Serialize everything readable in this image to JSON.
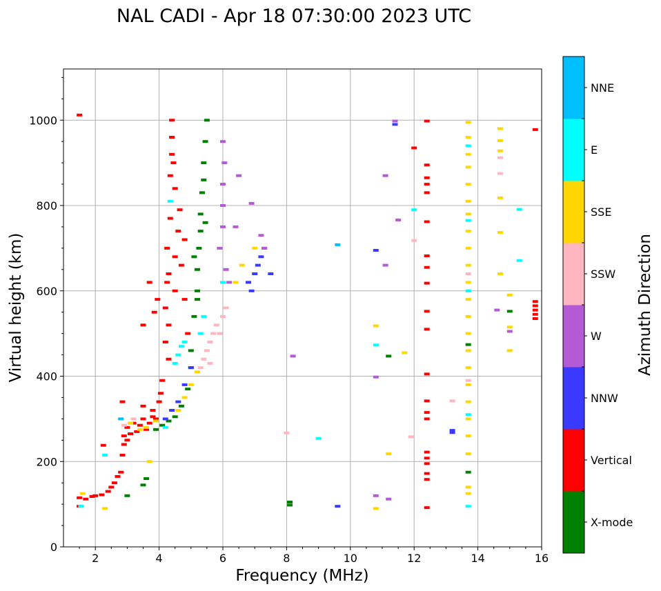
{
  "chart_data": {
    "type": "scatter",
    "title": "NAL CADI - Apr 18 07:30:00 2023 UTC",
    "xlabel": "Frequency (MHz)",
    "ylabel": "Virtual height (km)",
    "xlim": [
      1,
      16
    ],
    "ylim": [
      0,
      1120
    ],
    "xticks": [
      2,
      4,
      6,
      8,
      10,
      12,
      14,
      16
    ],
    "yticks": [
      0,
      200,
      400,
      600,
      800,
      1000
    ],
    "grid": true,
    "colorbar": {
      "label": "Azimuth Direction",
      "entries": [
        {
          "name": "X-mode",
          "color": "#008000"
        },
        {
          "name": "Vertical",
          "color": "#ff0000"
        },
        {
          "name": "NNW",
          "color": "#3a3aff"
        },
        {
          "name": "W",
          "color": "#b35ad6"
        },
        {
          "name": "SSW",
          "color": "#ffb6c1"
        },
        {
          "name": "SSE",
          "color": "#ffd700"
        },
        {
          "name": "E",
          "color": "#00ffff"
        },
        {
          "name": "NNE",
          "color": "#00bfff"
        }
      ]
    },
    "series": [
      {
        "name": "Vertical",
        "color": "#ff0000",
        "points": [
          [
            1.5,
            1012
          ],
          [
            1.5,
            115
          ],
          [
            1.5,
            95
          ],
          [
            1.7,
            112
          ],
          [
            1.9,
            118
          ],
          [
            2.0,
            120
          ],
          [
            2.2,
            122
          ],
          [
            2.4,
            130
          ],
          [
            2.5,
            140
          ],
          [
            2.6,
            150
          ],
          [
            2.7,
            165
          ],
          [
            2.8,
            175
          ],
          [
            2.85,
            215
          ],
          [
            2.85,
            340
          ],
          [
            2.9,
            240
          ],
          [
            2.9,
            260
          ],
          [
            3.0,
            280
          ],
          [
            3.0,
            250
          ],
          [
            3.1,
            265
          ],
          [
            3.2,
            290
          ],
          [
            3.3,
            270
          ],
          [
            3.4,
            285
          ],
          [
            3.5,
            330
          ],
          [
            3.5,
            300
          ],
          [
            3.6,
            275
          ],
          [
            3.7,
            290
          ],
          [
            3.8,
            305
          ],
          [
            3.8,
            320
          ],
          [
            3.9,
            300
          ],
          [
            4.0,
            340
          ],
          [
            4.05,
            360
          ],
          [
            4.1,
            390
          ],
          [
            4.2,
            480
          ],
          [
            4.2,
            560
          ],
          [
            4.25,
            620
          ],
          [
            4.25,
            700
          ],
          [
            4.3,
            440
          ],
          [
            4.3,
            520
          ],
          [
            4.3,
            640
          ],
          [
            4.35,
            770
          ],
          [
            4.35,
            870
          ],
          [
            4.4,
            920
          ],
          [
            4.4,
            960
          ],
          [
            4.4,
            1000
          ],
          [
            4.45,
            900
          ],
          [
            4.5,
            840
          ],
          [
            4.5,
            680
          ],
          [
            4.5,
            600
          ],
          [
            4.6,
            740
          ],
          [
            4.65,
            790
          ],
          [
            4.7,
            660
          ],
          [
            4.8,
            720
          ],
          [
            4.8,
            580
          ],
          [
            4.9,
            500
          ],
          [
            3.85,
            550
          ],
          [
            3.95,
            580
          ],
          [
            3.7,
            620
          ],
          [
            3.5,
            520
          ],
          [
            2.25,
            238
          ],
          [
            12.4,
            998
          ],
          [
            12.4,
            895
          ],
          [
            12.4,
            865
          ],
          [
            12.4,
            850
          ],
          [
            12.4,
            830
          ],
          [
            12.4,
            762
          ],
          [
            12.4,
            682
          ],
          [
            12.4,
            655
          ],
          [
            12.4,
            618
          ],
          [
            12.4,
            552
          ],
          [
            12.4,
            510
          ],
          [
            12.4,
            405
          ],
          [
            12.4,
            342
          ],
          [
            12.4,
            315
          ],
          [
            12.4,
            300
          ],
          [
            12.4,
            222
          ],
          [
            12.4,
            208
          ],
          [
            12.4,
            195
          ],
          [
            12.4,
            172
          ],
          [
            12.4,
            158
          ],
          [
            12.4,
            92
          ],
          [
            12.0,
            935
          ],
          [
            15.8,
            978
          ],
          [
            15.8,
            575
          ],
          [
            15.8,
            565
          ],
          [
            15.8,
            555
          ],
          [
            15.8,
            545
          ],
          [
            15.8,
            535
          ]
        ]
      },
      {
        "name": "X-mode",
        "color": "#008000",
        "points": [
          [
            3.0,
            120
          ],
          [
            3.5,
            145
          ],
          [
            3.6,
            160
          ],
          [
            3.9,
            275
          ],
          [
            4.1,
            285
          ],
          [
            4.3,
            295
          ],
          [
            4.5,
            305
          ],
          [
            4.7,
            330
          ],
          [
            4.9,
            370
          ],
          [
            5.0,
            420
          ],
          [
            5.0,
            460
          ],
          [
            5.1,
            540
          ],
          [
            5.2,
            600
          ],
          [
            5.2,
            650
          ],
          [
            5.25,
            700
          ],
          [
            5.3,
            740
          ],
          [
            5.3,
            780
          ],
          [
            5.35,
            830
          ],
          [
            5.4,
            860
          ],
          [
            5.4,
            900
          ],
          [
            5.45,
            950
          ],
          [
            5.5,
            1000
          ],
          [
            5.1,
            680
          ],
          [
            5.2,
            580
          ],
          [
            5.45,
            760
          ],
          [
            8.1,
            105
          ],
          [
            8.1,
            98
          ],
          [
            11.2,
            447
          ],
          [
            13.7,
            175
          ],
          [
            13.7,
            474
          ],
          [
            15.0,
            552
          ]
        ]
      },
      {
        "name": "NNW",
        "color": "#3a3aff",
        "points": [
          [
            4.2,
            300
          ],
          [
            4.4,
            320
          ],
          [
            4.6,
            340
          ],
          [
            4.8,
            380
          ],
          [
            5.0,
            420
          ],
          [
            6.8,
            620
          ],
          [
            7.0,
            640
          ],
          [
            7.1,
            660
          ],
          [
            7.2,
            680
          ],
          [
            7.3,
            700
          ],
          [
            6.9,
            600
          ],
          [
            7.5,
            640
          ],
          [
            9.6,
            95
          ],
          [
            10.8,
            695
          ],
          [
            13.2,
            268
          ],
          [
            13.2,
            273
          ],
          [
            11.4,
            990
          ]
        ]
      },
      {
        "name": "W",
        "color": "#b35ad6",
        "points": [
          [
            5.9,
            700
          ],
          [
            6.0,
            750
          ],
          [
            6.0,
            800
          ],
          [
            6.0,
            850
          ],
          [
            6.05,
            900
          ],
          [
            6.0,
            950
          ],
          [
            6.1,
            650
          ],
          [
            6.2,
            620
          ],
          [
            6.4,
            750
          ],
          [
            6.5,
            870
          ],
          [
            6.9,
            805
          ],
          [
            7.2,
            730
          ],
          [
            7.3,
            700
          ],
          [
            8.2,
            447
          ],
          [
            10.8,
            120
          ],
          [
            10.8,
            398
          ],
          [
            11.1,
            660
          ],
          [
            11.1,
            870
          ],
          [
            11.2,
            112
          ],
          [
            11.4,
            998
          ],
          [
            11.5,
            766
          ],
          [
            14.6,
            555
          ],
          [
            15.0,
            505
          ]
        ]
      },
      {
        "name": "SSW",
        "color": "#ffb6c1",
        "points": [
          [
            5.3,
            420
          ],
          [
            5.4,
            440
          ],
          [
            5.5,
            460
          ],
          [
            5.6,
            480
          ],
          [
            5.7,
            500
          ],
          [
            5.8,
            520
          ],
          [
            6.0,
            540
          ],
          [
            6.1,
            560
          ],
          [
            5.9,
            500
          ],
          [
            5.6,
            430
          ],
          [
            2.9,
            285
          ],
          [
            3.2,
            300
          ],
          [
            8.0,
            267
          ],
          [
            11.9,
            258
          ],
          [
            12.0,
            718
          ],
          [
            13.2,
            342
          ],
          [
            13.7,
            640
          ],
          [
            13.7,
            390
          ],
          [
            14.7,
            875
          ],
          [
            14.7,
            912
          ]
        ]
      },
      {
        "name": "SSE",
        "color": "#ffd700",
        "points": [
          [
            1.6,
            125
          ],
          [
            2.3,
            90
          ],
          [
            3.1,
            290
          ],
          [
            3.4,
            275
          ],
          [
            3.6,
            280
          ],
          [
            3.7,
            200
          ],
          [
            3.9,
            295
          ],
          [
            4.6,
            320
          ],
          [
            4.8,
            350
          ],
          [
            5.0,
            380
          ],
          [
            5.2,
            410
          ],
          [
            6.4,
            620
          ],
          [
            6.6,
            660
          ],
          [
            7.0,
            700
          ],
          [
            10.8,
            90
          ],
          [
            10.8,
            518
          ],
          [
            11.2,
            218
          ],
          [
            11.7,
            455
          ],
          [
            13.7,
            995
          ],
          [
            13.7,
            960
          ],
          [
            13.7,
            920
          ],
          [
            13.7,
            890
          ],
          [
            13.7,
            850
          ],
          [
            13.7,
            810
          ],
          [
            13.7,
            780
          ],
          [
            13.7,
            740
          ],
          [
            13.7,
            700
          ],
          [
            13.7,
            660
          ],
          [
            13.7,
            620
          ],
          [
            13.7,
            580
          ],
          [
            13.7,
            540
          ],
          [
            13.7,
            500
          ],
          [
            13.7,
            460
          ],
          [
            13.7,
            420
          ],
          [
            13.7,
            380
          ],
          [
            13.7,
            340
          ],
          [
            13.7,
            300
          ],
          [
            13.7,
            260
          ],
          [
            13.7,
            218
          ],
          [
            13.7,
            140
          ],
          [
            13.7,
            125
          ],
          [
            14.7,
            980
          ],
          [
            14.7,
            952
          ],
          [
            14.7,
            928
          ],
          [
            14.7,
            818
          ],
          [
            14.7,
            737
          ],
          [
            14.7,
            640
          ],
          [
            15.0,
            590
          ],
          [
            15.0,
            515
          ],
          [
            15.0,
            460
          ]
        ]
      },
      {
        "name": "E",
        "color": "#00ffff",
        "points": [
          [
            1.55,
            95
          ],
          [
            2.3,
            215
          ],
          [
            4.2,
            280
          ],
          [
            4.35,
            810
          ],
          [
            4.5,
            430
          ],
          [
            4.6,
            450
          ],
          [
            4.7,
            470
          ],
          [
            4.8,
            480
          ],
          [
            5.3,
            500
          ],
          [
            5.4,
            540
          ],
          [
            6.0,
            620
          ],
          [
            9.0,
            254
          ],
          [
            10.8,
            473
          ],
          [
            12.0,
            790
          ],
          [
            13.7,
            940
          ],
          [
            13.7,
            765
          ],
          [
            13.7,
            600
          ],
          [
            13.7,
            310
          ],
          [
            13.7,
            95
          ],
          [
            15.3,
            791
          ],
          [
            15.3,
            671
          ]
        ]
      },
      {
        "name": "NNE",
        "color": "#00bfff",
        "points": [
          [
            2.8,
            300
          ],
          [
            9.6,
            708
          ]
        ]
      }
    ]
  }
}
